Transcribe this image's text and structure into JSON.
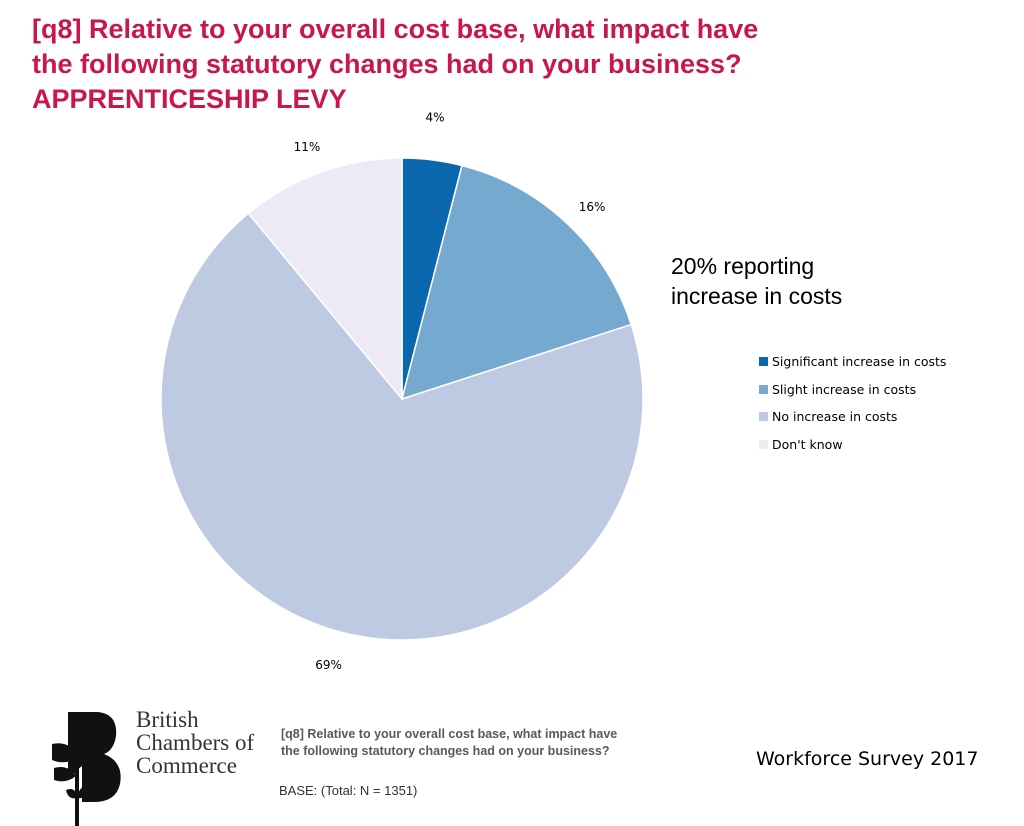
{
  "title": {
    "line1": "[q8] Relative to your overall cost base, what impact have",
    "line2": "the following statutory changes had on your business?",
    "line3": "APPRENTICESHIP LEVY",
    "color": "#c8184a"
  },
  "callout": {
    "line1": "20% reporting",
    "line2": "increase in costs"
  },
  "chart_data": {
    "type": "pie",
    "title": "[q8] Relative to your overall cost base, what impact have the following statutory changes had on your business? APPRENTICESHIP LEVY",
    "start": "12 o'clock",
    "direction": "clockwise",
    "legend_position": "right",
    "slices": [
      {
        "label": "Significant increase in costs",
        "value": 4,
        "display": "4%",
        "color": "#0a67ae"
      },
      {
        "label": "Slight increase in costs",
        "value": 16,
        "display": "16%",
        "color": "#76a9d0"
      },
      {
        "label": "No increase in costs",
        "value": 69,
        "display": "69%",
        "color": "#bec9e2"
      },
      {
        "label": "Don't know",
        "value": 11,
        "display": "11%",
        "color": "#edeaf5"
      }
    ]
  },
  "legend": {
    "items": [
      {
        "label": "Significant increase in costs",
        "color": "#0a67ae"
      },
      {
        "label": "Slight increase in costs",
        "color": "#76a9d0"
      },
      {
        "label": "No increase in costs",
        "color": "#bec9e2"
      },
      {
        "label": "Don't know",
        "color": "#edeaf5"
      }
    ]
  },
  "footer": {
    "question_line1": "[q8] Relative to your overall cost base, what impact have",
    "question_line2": "the following statutory changes had on your business?",
    "base": "BASE: (Total: N = 1351)",
    "survey": "Workforce Survey 2017"
  },
  "logo": {
    "line1": "British",
    "line2": "Chambers of",
    "line3": "Commerce"
  }
}
